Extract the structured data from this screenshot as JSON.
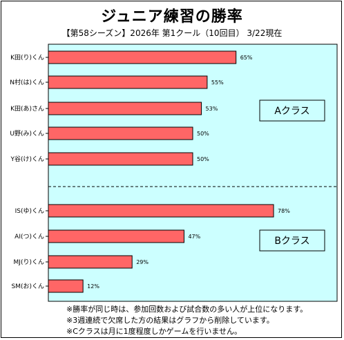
{
  "title": "ジュニア練習の勝率",
  "subtitle": "【第58シーズン】2026年  第1クール（10回目）  3/22現在",
  "notes": [
    "※勝率が同じ時は、参加回数および試合数の多い人が上位になります。",
    "※3週連続で欠席した方の結果はグラフから削除しています。",
    "※Cクラスは月に1度程度しかゲームを行いません。"
  ],
  "colors": {
    "plot_bg": "#ccffff",
    "bar_fill": "#ff6666",
    "bar_stroke": "#000000"
  },
  "chart_data": {
    "type": "bar",
    "orientation": "horizontal",
    "title": "ジュニア練習の勝率",
    "groups": [
      {
        "label": "Aクラス",
        "categories": [
          "K田(り)くん",
          "N村(は)くん",
          "K田(あ)さん",
          "U野(み)くん",
          "Y谷(け)くん"
        ],
        "values": [
          65,
          55,
          53,
          50,
          50
        ],
        "value_labels": [
          "65%",
          "55%",
          "53%",
          "50%",
          "50%"
        ]
      },
      {
        "label": "Bクラス",
        "categories": [
          "IS(ゆ)くん",
          "AI(つ)くん",
          "MJ(り)くん",
          "SM(お)くん"
        ],
        "values": [
          78,
          47,
          29,
          12
        ],
        "value_labels": [
          "78%",
          "47%",
          "29%",
          "12%"
        ]
      }
    ],
    "xlim": [
      0,
      100
    ],
    "unit": "%",
    "grid": false,
    "group_separator": "dashed"
  }
}
